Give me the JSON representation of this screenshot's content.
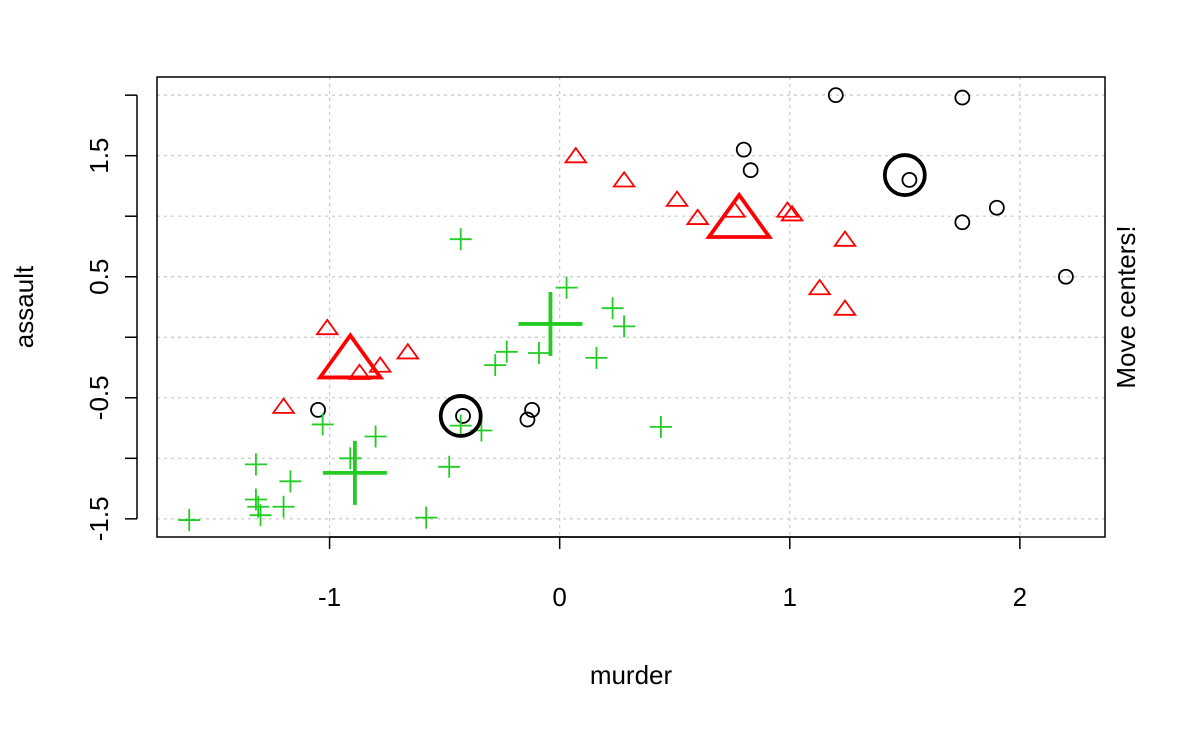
{
  "chart_data": {
    "type": "scatter",
    "xlabel": "murder",
    "ylabel": "assault",
    "side_label": "Move centers!",
    "xlim": [
      -1.75,
      2.37
    ],
    "ylim": [
      -1.65,
      2.15
    ],
    "xticks": [
      -1,
      0,
      1,
      2
    ],
    "xtick_labels": [
      "-1",
      "0",
      "1",
      "2"
    ],
    "yticks": [
      -1.5,
      -1.0,
      -0.5,
      0.0,
      0.5,
      1.0,
      1.5,
      2.0
    ],
    "ytick_labels": [
      "-1.5",
      "",
      "-0.5",
      "",
      "0.5",
      "",
      "1.5",
      ""
    ],
    "grid": true,
    "colors": {
      "circle": "#000000",
      "triangle": "#ff0000",
      "plus": "#22cc22",
      "grid": "#c8c8c8"
    },
    "series": [
      {
        "marker": "circle",
        "color": "#000000",
        "points": [
          [
            1.2,
            2.0
          ],
          [
            1.75,
            1.98
          ],
          [
            0.8,
            1.55
          ],
          [
            0.83,
            1.38
          ],
          [
            1.52,
            1.3
          ],
          [
            1.9,
            1.07
          ],
          [
            1.75,
            0.95
          ],
          [
            2.2,
            0.5
          ],
          [
            -1.05,
            -0.6
          ],
          [
            -0.42,
            -0.65
          ],
          [
            -0.12,
            -0.6
          ],
          [
            -0.14,
            -0.68
          ]
        ],
        "center": [
          1.5,
          1.34
        ]
      },
      {
        "marker": "triangle",
        "color": "#ff0000",
        "points": [
          [
            0.07,
            1.49
          ],
          [
            0.28,
            1.29
          ],
          [
            0.51,
            1.13
          ],
          [
            0.6,
            0.98
          ],
          [
            0.76,
            1.04
          ],
          [
            0.99,
            1.04
          ],
          [
            1.01,
            1.01
          ],
          [
            1.24,
            0.8
          ],
          [
            1.13,
            0.4
          ],
          [
            1.24,
            0.23
          ],
          [
            -1.01,
            0.07
          ],
          [
            -0.66,
            -0.13
          ],
          [
            -0.78,
            -0.24
          ],
          [
            -0.87,
            -0.3
          ],
          [
            -1.2,
            -0.58
          ]
        ],
        "center": [
          0.78,
          0.96
        ]
      },
      {
        "marker": "plus",
        "color": "#22cc22",
        "points": [
          [
            -0.43,
            0.81
          ],
          [
            0.03,
            0.41
          ],
          [
            0.23,
            0.24
          ],
          [
            0.28,
            0.09
          ],
          [
            -0.23,
            -0.12
          ],
          [
            -0.09,
            -0.13
          ],
          [
            0.16,
            -0.17
          ],
          [
            -0.28,
            -0.23
          ],
          [
            -1.03,
            -0.72
          ],
          [
            -0.43,
            -0.73
          ],
          [
            -0.34,
            -0.77
          ],
          [
            0.44,
            -0.74
          ],
          [
            -0.8,
            -0.82
          ],
          [
            -0.91,
            -1.0
          ],
          [
            -1.32,
            -1.05
          ],
          [
            -0.48,
            -1.07
          ],
          [
            -1.17,
            -1.19
          ],
          [
            -1.32,
            -1.34
          ],
          [
            -1.31,
            -1.4
          ],
          [
            -1.2,
            -1.4
          ],
          [
            -1.3,
            -1.47
          ],
          [
            -0.58,
            -1.49
          ],
          [
            -1.61,
            -1.51
          ]
        ],
        "center": [
          -0.04,
          0.11
        ]
      },
      {
        "marker": "plus",
        "color": "#22cc22",
        "points": [],
        "center": [
          -0.89,
          -1.12
        ]
      },
      {
        "marker": "circle",
        "color": "#000000",
        "points": [],
        "center": [
          -0.43,
          -0.65
        ]
      },
      {
        "marker": "triangle",
        "color": "#ff0000",
        "points": [],
        "center": [
          -0.91,
          -0.2
        ]
      }
    ]
  }
}
